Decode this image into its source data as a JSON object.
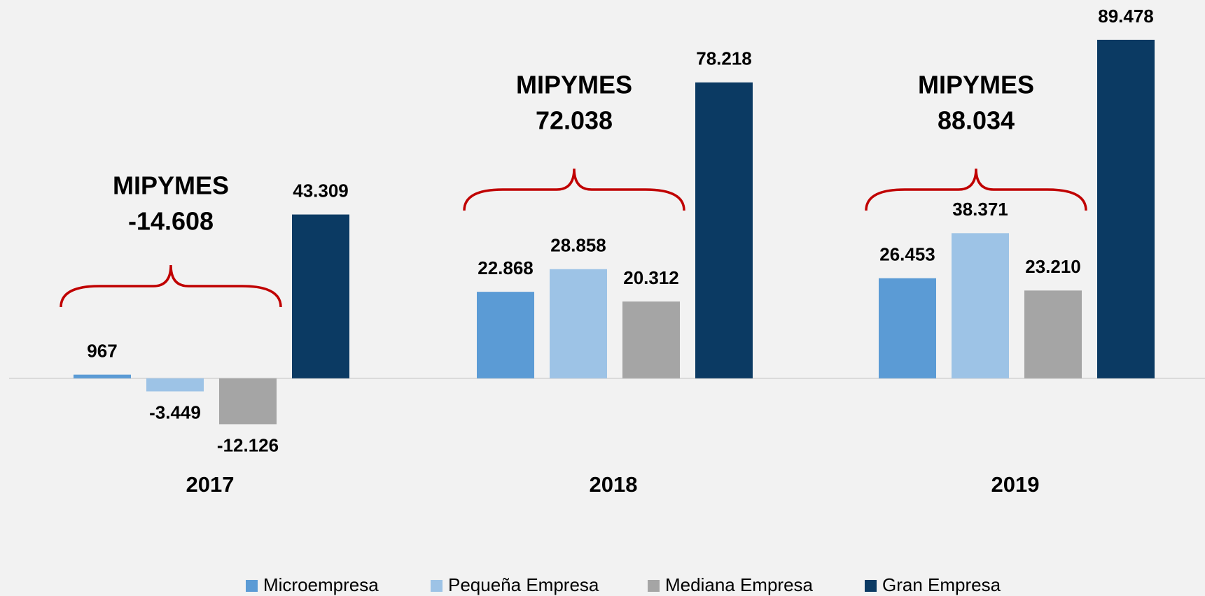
{
  "chart_data": {
    "type": "bar",
    "categories": [
      "2017",
      "2018",
      "2019"
    ],
    "series": [
      {
        "name": "Microempresa",
        "color": "#5b9bd5",
        "values": [
          967,
          22868,
          26453
        ],
        "value_labels": [
          "967",
          "22.868",
          "26.453"
        ]
      },
      {
        "name": "Pequeña Empresa",
        "color": "#9dc3e6",
        "values": [
          -3449,
          28858,
          38371
        ],
        "value_labels": [
          "-3.449",
          "28.858",
          "38.371"
        ]
      },
      {
        "name": "Mediana Empresa",
        "color": "#a5a5a5",
        "values": [
          -12126,
          20312,
          23210
        ],
        "value_labels": [
          "-12.126",
          "20.312",
          "23.210"
        ]
      },
      {
        "name": "Gran Empresa",
        "color": "#0b3a63",
        "values": [
          43309,
          78218,
          89478
        ],
        "value_labels": [
          "43.309",
          "78.218",
          "89.478"
        ]
      }
    ],
    "annotations": [
      {
        "text": "MIPYMES",
        "label": "-14.608"
      },
      {
        "text": "MIPYMES",
        "label": "72.038"
      },
      {
        "text": "MIPYMES",
        "label": "88.034"
      }
    ],
    "annotation_color": "#c00000",
    "ylim": [
      -20000,
      100000
    ],
    "legend": "bottom"
  }
}
